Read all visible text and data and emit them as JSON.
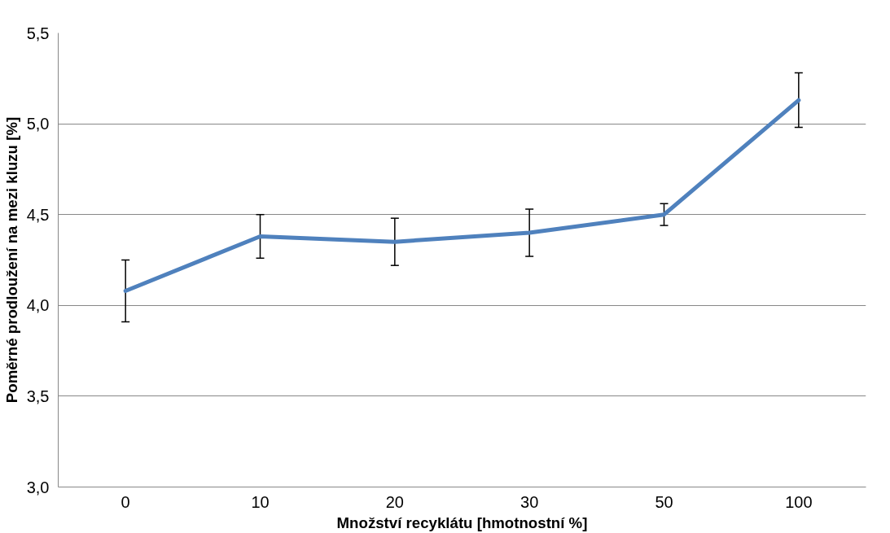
{
  "chart_data": {
    "type": "line",
    "xlabel": "Množství recyklátu [hmotnostní %]",
    "ylabel": "Poměrné prodloužení na mezi kluzu [%]",
    "categories": [
      "0",
      "10",
      "20",
      "30",
      "50",
      "100"
    ],
    "series": [
      {
        "color": "#4f81bd",
        "values": [
          4.08,
          4.38,
          4.35,
          4.4,
          4.5,
          5.13
        ],
        "errors": [
          0.17,
          0.12,
          0.13,
          0.13,
          0.06,
          0.15
        ]
      }
    ],
    "ylim": [
      3.0,
      5.5
    ],
    "yticks": [
      {
        "value": 3.0,
        "label": "3,0"
      },
      {
        "value": 3.5,
        "label": "3,5"
      },
      {
        "value": 4.0,
        "label": "4,0"
      },
      {
        "value": 4.5,
        "label": "4,5"
      },
      {
        "value": 5.0,
        "label": "5,0"
      },
      {
        "value": 5.5,
        "label": "5,5"
      }
    ],
    "grid": "y",
    "marker": "none",
    "line_style": "solid"
  }
}
